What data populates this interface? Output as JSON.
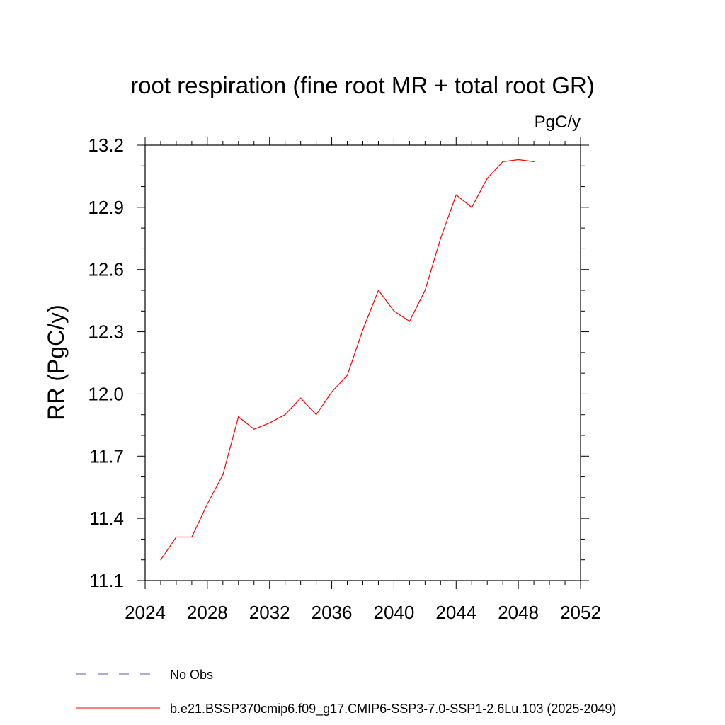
{
  "chart_data": {
    "type": "line",
    "title": "root respiration (fine root MR + total root GR)",
    "units_label": "PgC/y",
    "ylabel": "RR  (PgC/y)",
    "xlabel": "",
    "xlim": [
      2024,
      2052
    ],
    "ylim": [
      11.1,
      13.2
    ],
    "x_ticks": [
      2024,
      2028,
      2032,
      2036,
      2040,
      2044,
      2048,
      2052
    ],
    "y_ticks": [
      "11.1",
      "11.4",
      "11.7",
      "12.0",
      "12.3",
      "12.6",
      "12.9",
      "13.2"
    ],
    "series": [
      {
        "name": "b.e21.BSSP370cmip6.f09_g17.CMIP6-SSP3-7.0-SSP1-2.6Lu.103 (2025-2049)",
        "color": "#ff0000",
        "x": [
          2025,
          2026,
          2027,
          2028,
          2029,
          2030,
          2031,
          2032,
          2033,
          2034,
          2035,
          2036,
          2037,
          2038,
          2039,
          2040,
          2041,
          2042,
          2043,
          2044,
          2045,
          2046,
          2047,
          2048,
          2049
        ],
        "values": [
          11.2,
          11.31,
          11.31,
          11.47,
          11.61,
          11.89,
          11.83,
          11.86,
          11.9,
          11.98,
          11.9,
          12.01,
          12.09,
          12.31,
          12.5,
          12.4,
          12.35,
          12.5,
          12.75,
          12.96,
          12.9,
          13.04,
          13.12,
          13.13,
          13.12
        ]
      }
    ],
    "legend": [
      {
        "label": "No Obs",
        "color": "#5a5aaa",
        "style": "dashed"
      },
      {
        "label": "b.e21.BSSP370cmip6.f09_g17.CMIP6-SSP3-7.0-SSP1-2.6Lu.103 (2025-2049)",
        "color": "#ff0000",
        "style": "solid"
      }
    ]
  }
}
